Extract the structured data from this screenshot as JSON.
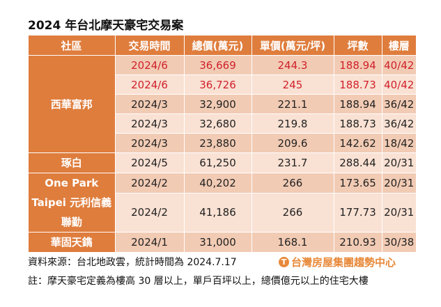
{
  "title": "2024 年台北摩天豪宅交易案",
  "headers": [
    "社區",
    "交易時間",
    "總價(萬元)",
    "單價(萬元/坪)",
    "坪數",
    "樓層"
  ],
  "communities": {
    "c1": "西華富邦",
    "c2": "琢白",
    "c3": "One Park Taipei 元利信義聯勤",
    "c4": "華固天鐫"
  },
  "rows": [
    [
      "2024/6",
      "36,669",
      "244.3",
      "188.94",
      "40/42"
    ],
    [
      "2024/6",
      "36,726",
      "245",
      "188.73",
      "40/42"
    ],
    [
      "2024/3",
      "32,900",
      "221.1",
      "188.94",
      "36/42"
    ],
    [
      "2024/3",
      "32,680",
      "219.8",
      "188.73",
      "36/42"
    ],
    [
      "2024/3",
      "23,880",
      "209.6",
      "142.62",
      "18/42"
    ],
    [
      "2024/5",
      "61,250",
      "231.7",
      "288.44",
      "20/31"
    ],
    [
      "2024/2",
      "40,202",
      "266",
      "173.65",
      "20/31"
    ],
    [
      "2024/2",
      "41,186",
      "266",
      "177.73",
      "20/31"
    ],
    [
      "2024/1",
      "31,000",
      "168.1",
      "210.93",
      "30/38"
    ]
  ],
  "highlight_color": "#d0202a",
  "header_color": "#df7d3d",
  "source": "資料來源：台北地政雲，統計時間為 2024.7.17",
  "note": "註：摩天豪宅定義為樓高 30 層以上，單戶百坪以上，總價億元以上的住宅大樓",
  "logo": "台灣房屋集團趨勢中心"
}
